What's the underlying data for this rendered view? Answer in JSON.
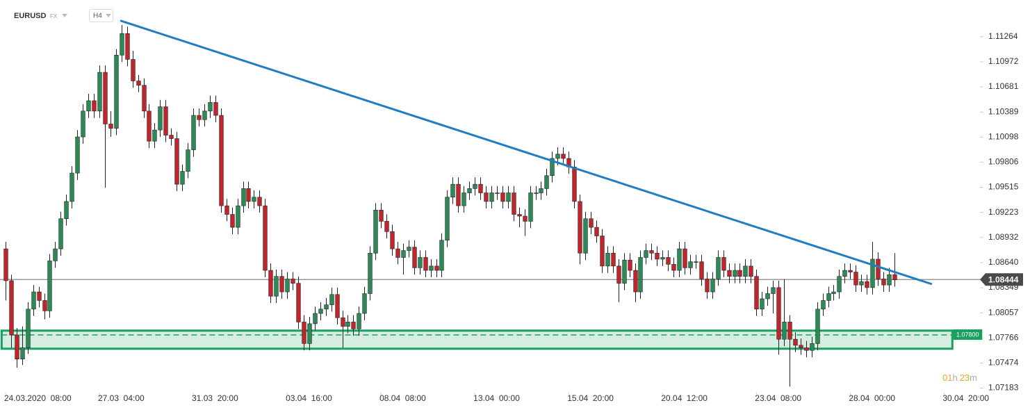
{
  "header": {
    "symbol": "EURUSD",
    "market": "FX",
    "timeframe": "H4"
  },
  "chart_data": {
    "type": "candlestick",
    "up_color": "#2b8a55",
    "down_color": "#c2242b",
    "xlim": [
      -1,
      176.5
    ],
    "xticks": [
      {
        "value": 0,
        "label": "24.03.2020  08:00"
      },
      {
        "value": 17,
        "label": "27.03  04:00"
      },
      {
        "value": 34,
        "label": "31.03  20:00"
      },
      {
        "value": 51,
        "label": "03.04  16:00"
      },
      {
        "value": 68,
        "label": "08.04  08:00"
      },
      {
        "value": 85,
        "label": "13.04  00:00"
      },
      {
        "value": 102,
        "label": "15.04  20:00"
      },
      {
        "value": 119,
        "label": "20.04  12:00"
      },
      {
        "value": 136,
        "label": "23.04  08:00"
      },
      {
        "value": 153,
        "label": "28.04  00:00"
      },
      {
        "value": 170,
        "label": "30.04  20:00"
      }
    ],
    "ylim": [
      1.0713,
      1.1169
    ],
    "yticks": [
      1.11264,
      1.10972,
      1.10681,
      1.10389,
      1.10098,
      1.09806,
      1.09515,
      1.09223,
      1.08932,
      {
        "value": 1.0864,
        "label": "1.08640"
      },
      1.08349,
      1.08057,
      1.07766,
      1.07474,
      1.07183
    ],
    "grid": false,
    "current_price": 1.08444,
    "trendline": {
      "x": [
        20.8,
        167.8
      ],
      "y": [
        1.1145,
        1.0839
      ],
      "color": "#1f7dc2"
    },
    "zone": {
      "x": [
        -0.7,
        171.5
      ],
      "y": [
        1.0764,
        1.0785
      ],
      "color": "#1aa060"
    },
    "level": {
      "value": 1.078,
      "label": "1.07800"
    },
    "countdown": [
      "01",
      "h",
      "23",
      "m"
    ],
    "ohlc": [
      [
        1.088,
        1.0888,
        1.082,
        1.0843
      ],
      [
        1.0843,
        1.085,
        1.0765,
        1.078
      ],
      [
        1.078,
        1.0788,
        1.0742,
        1.0752
      ],
      [
        1.0752,
        1.079,
        1.0745,
        1.0765
      ],
      [
        1.0765,
        1.0818,
        1.0758,
        1.081
      ],
      [
        1.081,
        1.0838,
        1.0802,
        1.083
      ],
      [
        1.083,
        1.0836,
        1.0812,
        1.082
      ],
      [
        1.082,
        1.0828,
        1.0798,
        1.0808
      ],
      [
        1.0808,
        1.0874,
        1.08,
        1.0866
      ],
      [
        1.0866,
        1.0888,
        1.0858,
        1.088
      ],
      [
        1.088,
        1.0923,
        1.0872,
        1.0915
      ],
      [
        1.0915,
        1.0943,
        1.0907,
        1.0935
      ],
      [
        1.0935,
        1.0976,
        1.0927,
        1.0968
      ],
      [
        1.0968,
        1.1018,
        1.096,
        1.101
      ],
      [
        1.101,
        1.1048,
        1.1002,
        1.104
      ],
      [
        1.104,
        1.106,
        1.1032,
        1.1052
      ],
      [
        1.1052,
        1.106,
        1.1032,
        1.104
      ],
      [
        1.104,
        1.1093,
        1.1032,
        1.1085
      ],
      [
        1.1085,
        1.1093,
        1.0951,
        1.1025
      ],
      [
        1.1025,
        1.104,
        1.101,
        1.102
      ],
      [
        1.102,
        1.1112,
        1.1012,
        1.1105
      ],
      [
        1.1105,
        1.114,
        1.1097,
        1.113
      ],
      [
        1.113,
        1.1138,
        1.1092,
        1.11
      ],
      [
        1.11,
        1.111,
        1.1067,
        1.1075
      ],
      [
        1.1075,
        1.1082,
        1.1062,
        1.107
      ],
      [
        1.107,
        1.1078,
        1.1032,
        1.104
      ],
      [
        1.104,
        1.1048,
        1.0997,
        1.1005
      ],
      [
        1.1005,
        1.1026,
        1.0997,
        1.1018
      ],
      [
        1.1018,
        1.1053,
        1.101,
        1.1045
      ],
      [
        1.1045,
        1.1053,
        1.1004,
        1.1012
      ],
      [
        1.1012,
        1.102,
        1.1,
        1.1008
      ],
      [
        1.1008,
        1.1016,
        1.0947,
        1.0955
      ],
      [
        1.0955,
        1.0978,
        1.0947,
        1.097
      ],
      [
        1.097,
        1.1003,
        1.0962,
        1.0995
      ],
      [
        1.0995,
        1.1043,
        1.0987,
        1.1035
      ],
      [
        1.1035,
        1.1043,
        1.1022,
        1.103
      ],
      [
        1.103,
        1.1048,
        1.1022,
        1.104
      ],
      [
        1.104,
        1.1058,
        1.1032,
        1.105
      ],
      [
        1.105,
        1.1058,
        1.1027,
        1.1035
      ],
      [
        1.1035,
        1.1043,
        1.0922,
        1.093
      ],
      [
        1.093,
        1.0938,
        1.0912,
        1.092
      ],
      [
        1.092,
        1.0928,
        1.0897,
        1.0905
      ],
      [
        1.0905,
        1.0938,
        1.0897,
        1.093
      ],
      [
        1.093,
        1.0958,
        1.0922,
        1.095
      ],
      [
        1.095,
        1.0958,
        1.0927,
        1.0935
      ],
      [
        1.0935,
        1.0948,
        1.0927,
        1.094
      ],
      [
        1.094,
        1.0948,
        1.0922,
        1.093
      ],
      [
        1.093,
        1.0938,
        1.0847,
        1.0855
      ],
      [
        1.0855,
        1.0863,
        1.0817,
        1.0825
      ],
      [
        1.0825,
        1.0856,
        1.0817,
        1.0848
      ],
      [
        1.0848,
        1.0856,
        1.0822,
        1.083
      ],
      [
        1.083,
        1.0853,
        1.0822,
        1.0845
      ],
      [
        1.0845,
        1.0853,
        1.0832,
        1.084
      ],
      [
        1.084,
        1.0848,
        1.0787,
        1.0795
      ],
      [
        1.0795,
        1.0803,
        1.0762,
        1.077
      ],
      [
        1.077,
        1.0801,
        1.0762,
        1.0793
      ],
      [
        1.0793,
        1.0813,
        1.0785,
        1.0805
      ],
      [
        1.0805,
        1.0818,
        1.0797,
        1.081
      ],
      [
        1.081,
        1.0823,
        1.0802,
        1.0815
      ],
      [
        1.0815,
        1.0835,
        1.0807,
        1.0827
      ],
      [
        1.0827,
        1.0835,
        1.0792,
        1.08
      ],
      [
        1.08,
        1.0808,
        1.0765,
        1.079
      ],
      [
        1.079,
        1.0803,
        1.0782,
        1.0795
      ],
      [
        1.0795,
        1.0803,
        1.0779,
        1.0787
      ],
      [
        1.0787,
        1.0813,
        1.0779,
        1.0805
      ],
      [
        1.0805,
        1.0836,
        1.0797,
        1.0828
      ],
      [
        1.0828,
        1.0883,
        1.082,
        1.0875
      ],
      [
        1.0875,
        1.0933,
        1.0867,
        1.0925
      ],
      [
        1.0925,
        1.0933,
        1.0904,
        1.0912
      ],
      [
        1.0912,
        1.092,
        1.0892,
        1.09
      ],
      [
        1.09,
        1.0908,
        1.0872,
        1.088
      ],
      [
        1.088,
        1.0888,
        1.0862,
        1.087
      ],
      [
        1.087,
        1.0886,
        1.085,
        1.0878
      ],
      [
        1.0878,
        1.089,
        1.087,
        1.0882
      ],
      [
        1.0882,
        1.089,
        1.085,
        1.0858
      ],
      [
        1.0858,
        1.0878,
        1.085,
        1.087
      ],
      [
        1.087,
        1.0878,
        1.0847,
        1.0855
      ],
      [
        1.0855,
        1.0868,
        1.0847,
        1.086
      ],
      [
        1.086,
        1.0868,
        1.0847,
        1.0855
      ],
      [
        1.0855,
        1.0898,
        1.0847,
        1.089
      ],
      [
        1.089,
        1.0948,
        1.0882,
        1.094
      ],
      [
        1.094,
        1.0963,
        1.0932,
        1.0955
      ],
      [
        1.0955,
        1.0963,
        1.0922,
        1.093
      ],
      [
        1.093,
        1.0953,
        1.0922,
        1.0945
      ],
      [
        1.0945,
        1.0958,
        1.0937,
        1.095
      ],
      [
        1.095,
        1.0963,
        1.0942,
        1.0955
      ],
      [
        1.0955,
        1.0963,
        1.0937,
        1.0945
      ],
      [
        1.0945,
        1.0953,
        1.0927,
        1.0935
      ],
      [
        1.0935,
        1.0953,
        1.0927,
        1.0945
      ],
      [
        1.0945,
        1.0953,
        1.0937,
        1.0945
      ],
      [
        1.0945,
        1.0953,
        1.0927,
        1.0935
      ],
      [
        1.0935,
        1.0953,
        1.0927,
        1.0945
      ],
      [
        1.0945,
        1.0953,
        1.0912,
        1.092
      ],
      [
        1.092,
        1.0928,
        1.0905,
        1.0918
      ],
      [
        1.0918,
        1.0926,
        1.0895,
        1.0912
      ],
      [
        1.0912,
        1.0953,
        1.0904,
        1.0945
      ],
      [
        1.0945,
        1.0953,
        1.0937,
        1.0945
      ],
      [
        1.0945,
        1.0958,
        1.0937,
        1.095
      ],
      [
        1.095,
        1.0973,
        1.0942,
        1.0965
      ],
      [
        1.0965,
        1.0993,
        1.0957,
        1.0985
      ],
      [
        1.0985,
        1.0998,
        1.0977,
        1.099
      ],
      [
        1.099,
        1.0998,
        1.0977,
        1.0985
      ],
      [
        1.0985,
        1.0993,
        1.0967,
        1.0975
      ],
      [
        1.0975,
        1.0983,
        1.0927,
        1.0935
      ],
      [
        1.0935,
        1.0943,
        1.0862,
        1.0875
      ],
      [
        1.0875,
        1.0923,
        1.0867,
        1.0915
      ],
      [
        1.0915,
        1.0923,
        1.0897,
        1.0905
      ],
      [
        1.0905,
        1.0913,
        1.0887,
        1.0895
      ],
      [
        1.0895,
        1.0903,
        1.0852,
        1.086
      ],
      [
        1.086,
        1.0883,
        1.0852,
        1.0875
      ],
      [
        1.0875,
        1.0883,
        1.0852,
        1.086
      ],
      [
        1.086,
        1.0868,
        1.0818,
        1.084
      ],
      [
        1.084,
        1.0875,
        1.0832,
        1.0867
      ],
      [
        1.0867,
        1.0875,
        1.0847,
        1.0855
      ],
      [
        1.0855,
        1.0863,
        1.0818,
        1.083
      ],
      [
        1.083,
        1.0878,
        1.0822,
        1.087
      ],
      [
        1.087,
        1.0886,
        1.0862,
        1.0878
      ],
      [
        1.0878,
        1.0886,
        1.0867,
        1.0875
      ],
      [
        1.0875,
        1.0883,
        1.086,
        1.0868
      ],
      [
        1.0868,
        1.0878,
        1.086,
        1.087
      ],
      [
        1.087,
        1.0878,
        1.0854,
        1.0862
      ],
      [
        1.0862,
        1.087,
        1.0847,
        1.0855
      ],
      [
        1.0855,
        1.0888,
        1.0847,
        1.088
      ],
      [
        1.088,
        1.0888,
        1.085,
        1.0858
      ],
      [
        1.0858,
        1.0873,
        1.085,
        1.0865
      ],
      [
        1.0865,
        1.0873,
        1.0857,
        1.0865
      ],
      [
        1.0865,
        1.0873,
        1.0837,
        1.0845
      ],
      [
        1.0845,
        1.0853,
        1.0822,
        1.083
      ],
      [
        1.083,
        1.0853,
        1.0822,
        1.0845
      ],
      [
        1.0845,
        1.0878,
        1.0837,
        1.087
      ],
      [
        1.087,
        1.0878,
        1.0847,
        1.0855
      ],
      [
        1.0855,
        1.0863,
        1.084,
        1.0848
      ],
      [
        1.0848,
        1.0863,
        1.084,
        1.0855
      ],
      [
        1.0855,
        1.0863,
        1.084,
        1.0848
      ],
      [
        1.0848,
        1.0868,
        1.084,
        1.086
      ],
      [
        1.086,
        1.0868,
        1.084,
        1.0848
      ],
      [
        1.0848,
        1.0856,
        1.0802,
        1.081
      ],
      [
        1.081,
        1.083,
        1.0802,
        1.0822
      ],
      [
        1.0822,
        1.0836,
        1.0814,
        1.0828
      ],
      [
        1.0828,
        1.0843,
        1.0805,
        1.0835
      ],
      [
        1.0835,
        1.0843,
        1.0757,
        1.0775
      ],
      [
        1.0775,
        1.0845,
        1.0767,
        1.0795
      ],
      [
        1.0795,
        1.0803,
        1.072,
        1.0775
      ],
      [
        1.0775,
        1.0783,
        1.076,
        1.0768
      ],
      [
        1.0768,
        1.0776,
        1.0757,
        1.0765
      ],
      [
        1.0765,
        1.0773,
        1.0754,
        1.0762
      ],
      [
        1.0762,
        1.0778,
        1.0754,
        1.077
      ],
      [
        1.077,
        1.0818,
        1.0762,
        1.081
      ],
      [
        1.081,
        1.0828,
        1.0802,
        1.082
      ],
      [
        1.082,
        1.0836,
        1.0812,
        1.0828
      ],
      [
        1.0828,
        1.0838,
        1.082,
        1.083
      ],
      [
        1.083,
        1.0856,
        1.0822,
        1.0848
      ],
      [
        1.0848,
        1.0863,
        1.084,
        1.0855
      ],
      [
        1.0855,
        1.0863,
        1.0845,
        1.0853
      ],
      [
        1.0853,
        1.0861,
        1.083,
        1.0838
      ],
      [
        1.0838,
        1.085,
        1.083,
        1.0842
      ],
      [
        1.0842,
        1.085,
        1.0827,
        1.0835
      ],
      [
        1.0835,
        1.0888,
        1.0827,
        1.0868
      ],
      [
        1.0868,
        1.0876,
        1.0837,
        1.0845
      ],
      [
        1.0845,
        1.0853,
        1.083,
        1.0838
      ],
      [
        1.0838,
        1.0858,
        1.083,
        1.085
      ],
      [
        1.085,
        1.0875,
        1.0836,
        1.0844
      ]
    ]
  }
}
